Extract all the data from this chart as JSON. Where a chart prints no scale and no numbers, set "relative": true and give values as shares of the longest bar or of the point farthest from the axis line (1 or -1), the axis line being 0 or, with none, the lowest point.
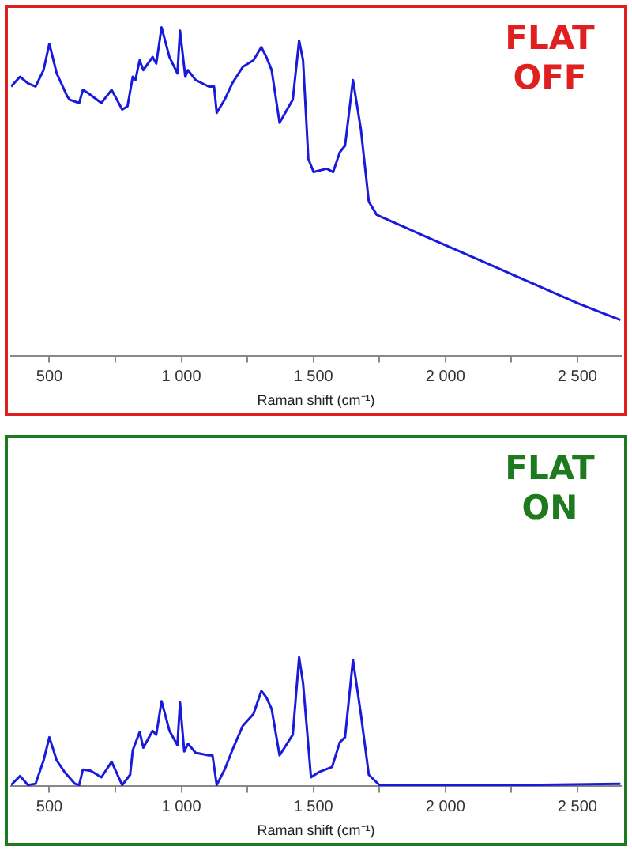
{
  "chart_data": [
    {
      "type": "line",
      "relative": true,
      "xlabel": "Raman shift (cm⁻¹)",
      "annotations": [
        "FLAT\nOFF"
      ],
      "xlim": [
        355,
        2665
      ],
      "xticks": [
        500,
        {
          "value": 750,
          "label": null
        },
        {
          "value": 1000,
          "label": "1 000"
        },
        {
          "value": 1250,
          "label": null
        },
        {
          "value": 1500,
          "label": "1 500"
        },
        {
          "value": 1750,
          "label": null
        },
        {
          "value": 2000,
          "label": "2 000"
        },
        {
          "value": 2250,
          "label": null
        },
        {
          "value": 2500,
          "label": "2 500"
        }
      ],
      "x": [
        355,
        389,
        419,
        448,
        478,
        500,
        528,
        568,
        577,
        613,
        627,
        647,
        697,
        736,
        776,
        796,
        816,
        826,
        842,
        856,
        891,
        905,
        925,
        955,
        985,
        995,
        1015,
        1025,
        1054,
        1104,
        1124,
        1134,
        1164,
        1193,
        1233,
        1273,
        1303,
        1322,
        1342,
        1372,
        1422,
        1446,
        1461,
        1481,
        1501,
        1551,
        1575,
        1600,
        1620,
        1650,
        1680,
        1710,
        1740,
        1908,
        2107,
        2306,
        2504,
        2663
      ],
      "series": [
        {
          "color": "#1a1adc",
          "values": [
            0.82,
            0.85,
            0.83,
            0.82,
            0.87,
            0.95,
            0.86,
            0.79,
            0.78,
            0.77,
            0.81,
            0.8,
            0.77,
            0.81,
            0.75,
            0.76,
            0.85,
            0.84,
            0.9,
            0.87,
            0.91,
            0.89,
            1.0,
            0.91,
            0.86,
            0.99,
            0.85,
            0.87,
            0.84,
            0.82,
            0.82,
            0.74,
            0.78,
            0.83,
            0.88,
            0.9,
            0.94,
            0.91,
            0.87,
            0.71,
            0.78,
            0.96,
            0.9,
            0.6,
            0.56,
            0.57,
            0.56,
            0.62,
            0.64,
            0.84,
            0.69,
            0.47,
            0.43,
            0.37,
            0.3,
            0.23,
            0.16,
            0.11
          ]
        }
      ]
    },
    {
      "type": "line",
      "relative": true,
      "xlabel": "Raman shift (cm⁻¹)",
      "annotations": [
        "FLAT\nON"
      ],
      "xlim": [
        355,
        2665
      ],
      "xticks": [
        500,
        {
          "value": 750,
          "label": null
        },
        {
          "value": 1000,
          "label": "1 000"
        },
        {
          "value": 1250,
          "label": null
        },
        {
          "value": 1500,
          "label": "1 500"
        },
        {
          "value": 1750,
          "label": null
        },
        {
          "value": 2000,
          "label": "2 000"
        },
        {
          "value": 2250,
          "label": null
        },
        {
          "value": 2500,
          "label": "2 500"
        }
      ],
      "x": [
        355,
        389,
        419,
        448,
        478,
        500,
        528,
        558,
        597,
        613,
        627,
        657,
        697,
        736,
        776,
        806,
        816,
        842,
        856,
        891,
        905,
        925,
        955,
        985,
        995,
        1011,
        1025,
        1054,
        1104,
        1118,
        1134,
        1164,
        1193,
        1233,
        1273,
        1303,
        1322,
        1342,
        1372,
        1422,
        1446,
        1461,
        1491,
        1521,
        1571,
        1600,
        1620,
        1650,
        1680,
        1710,
        1750,
        1908,
        2306,
        2663
      ],
      "series": [
        {
          "color": "#1a1adc",
          "values": [
            0.01,
            0.08,
            0.01,
            0.02,
            0.2,
            0.38,
            0.2,
            0.11,
            0.02,
            0.01,
            0.13,
            0.12,
            0.07,
            0.19,
            0.01,
            0.09,
            0.28,
            0.42,
            0.3,
            0.43,
            0.4,
            0.66,
            0.43,
            0.32,
            0.65,
            0.27,
            0.33,
            0.26,
            0.24,
            0.24,
            0.01,
            0.13,
            0.28,
            0.47,
            0.56,
            0.74,
            0.69,
            0.6,
            0.24,
            0.4,
            1.0,
            0.8,
            0.07,
            0.11,
            0.15,
            0.34,
            0.38,
            0.98,
            0.56,
            0.09,
            0.01,
            0.01,
            0.01,
            0.02
          ]
        }
      ]
    }
  ]
}
